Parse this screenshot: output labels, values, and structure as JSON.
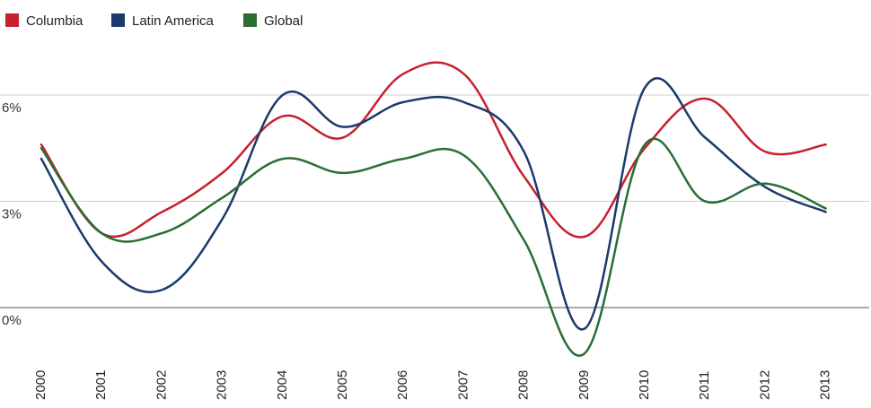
{
  "chart_data": {
    "type": "line",
    "title": "",
    "xlabel": "",
    "ylabel": "",
    "categories": [
      "2000",
      "2001",
      "2002",
      "2003",
      "2004",
      "2005",
      "2006",
      "2007",
      "2008",
      "2009",
      "2010",
      "2011",
      "2012",
      "2013"
    ],
    "yticks": [
      "0%",
      "3%",
      "6%"
    ],
    "ylim": [
      -1.5,
      7.5
    ],
    "grid": true,
    "legend_position": "top-left",
    "series": [
      {
        "name": "Columbia",
        "color": "#c8202e",
        "values": [
          4.6,
          2.1,
          2.7,
          3.8,
          5.4,
          4.8,
          6.6,
          6.6,
          3.7,
          2.0,
          4.5,
          5.9,
          4.4,
          4.6
        ]
      },
      {
        "name": "Latin America",
        "color": "#1b3a6b",
        "values": [
          4.2,
          1.3,
          0.5,
          2.5,
          6.0,
          5.1,
          5.8,
          5.8,
          4.4,
          -0.6,
          6.2,
          4.8,
          3.4,
          2.7
        ]
      },
      {
        "name": "Global",
        "color": "#2a6e35",
        "values": [
          4.5,
          2.1,
          2.1,
          3.1,
          4.2,
          3.8,
          4.2,
          4.3,
          1.9,
          -1.3,
          4.6,
          3.0,
          3.5,
          2.8
        ]
      }
    ]
  }
}
